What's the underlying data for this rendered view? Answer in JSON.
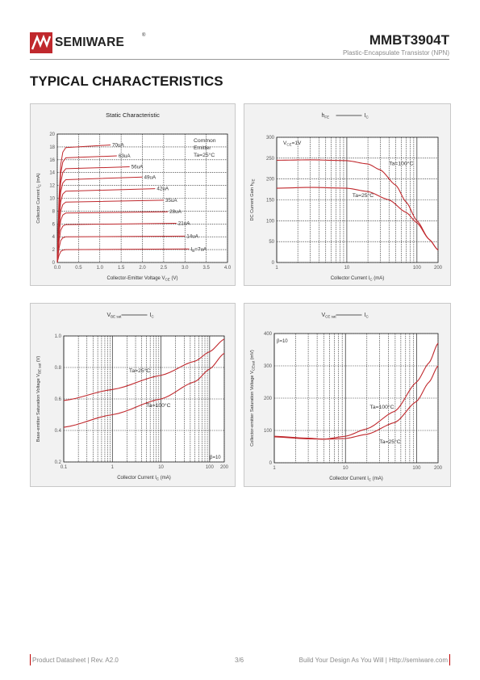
{
  "header": {
    "brand": "SEMIWARE",
    "brand_reg": "®",
    "part_number": "MMBT3904T",
    "part_desc": "Plastic-Encapsulate Transistor (NPN)",
    "logo": "semiware-logo-icon",
    "accent_color": "#c0282d"
  },
  "section_title": "TYPICAL CHARACTERISTICS",
  "footer": {
    "left": "Product Datasheet  |  Rev. A2.0",
    "page": "3/6",
    "right": "Build Your Design As You Will  |  Http://semiware.com"
  },
  "chart_data": [
    {
      "type": "line",
      "title": "Static Characteristic",
      "xlabel": "Collector-Emitter Voltage V",
      "xlabel_sub": "CE",
      "xlabel_unit": "(V)",
      "ylabel": "Collector Current I",
      "ylabel_sub": "C",
      "ylabel_unit": "(mA)",
      "xlim": [
        0,
        4
      ],
      "ylim": [
        0,
        20
      ],
      "xticks": [
        "0.0",
        "0.5",
        "1.0",
        "1.5",
        "2.0",
        "2.5",
        "3.0",
        "3.5",
        "4.0"
      ],
      "yticks": [
        "0",
        "2",
        "4",
        "6",
        "8",
        "10",
        "12",
        "14",
        "16",
        "18",
        "20"
      ],
      "grid": true,
      "annotation": [
        "Common",
        "Emitter",
        "Ta=25°C"
      ],
      "series": [
        {
          "name": "70uA",
          "sat_ic": 17.9,
          "end_ic": 18.3,
          "x_end": 1.25
        },
        {
          "name": "63uA",
          "sat_ic": 16.3,
          "end_ic": 16.6,
          "x_end": 1.4
        },
        {
          "name": "56uA",
          "sat_ic": 14.6,
          "end_ic": 14.9,
          "x_end": 1.7
        },
        {
          "name": "49uA",
          "sat_ic": 12.9,
          "end_ic": 13.3,
          "x_end": 2.0
        },
        {
          "name": "42uA",
          "sat_ic": 11.1,
          "end_ic": 11.5,
          "x_end": 2.3
        },
        {
          "name": "35uA",
          "sat_ic": 9.4,
          "end_ic": 9.7,
          "x_end": 2.5
        },
        {
          "name": "28uA",
          "sat_ic": 7.7,
          "end_ic": 7.9,
          "x_end": 2.6
        },
        {
          "name": "21uA",
          "sat_ic": 5.9,
          "end_ic": 6.1,
          "x_end": 2.8
        },
        {
          "name": "14uA",
          "sat_ic": 4.0,
          "end_ic": 4.1,
          "x_end": 3.0
        },
        {
          "name": "I",
          "name_sub": "B",
          "name_suffix": "=7uA",
          "sat_ic": 2.0,
          "end_ic": 2.1,
          "x_end": 3.1
        }
      ]
    },
    {
      "type": "line",
      "title": "h",
      "title_sub": "FE",
      "title_vs": "I",
      "title_vs_sub": "C",
      "xlabel": "Collector Current I",
      "xlabel_sub": "C",
      "xlabel_unit": "(mA)",
      "ylabel": "DC Current Gain h",
      "ylabel_sub": "FE",
      "xscale": "log",
      "xlim": [
        1,
        200
      ],
      "ylim": [
        0,
        300
      ],
      "xticks": [
        "1",
        "10",
        "100",
        "200"
      ],
      "yticks": [
        "0",
        "50",
        "100",
        "150",
        "200",
        "250",
        "300"
      ],
      "grid": true,
      "annotation": "V",
      "annotation_sub": "CE",
      "annotation_suffix": "=1V",
      "series": [
        {
          "name": "Ta=100°C",
          "x": [
            1,
            3,
            10,
            20,
            30,
            50,
            70,
            100,
            150,
            200
          ],
          "y": [
            245,
            246,
            244,
            236,
            222,
            185,
            145,
            100,
            55,
            30
          ]
        },
        {
          "name": "Ta=25°C",
          "x": [
            1,
            3,
            10,
            20,
            40,
            70,
            100,
            150,
            200
          ],
          "y": [
            178,
            180,
            178,
            170,
            150,
            120,
            95,
            55,
            30
          ]
        }
      ]
    },
    {
      "type": "line",
      "title": "V",
      "title_sub": "BE sat",
      "title_vs": "I",
      "title_vs_sub": "C",
      "xlabel": "Collector Current I",
      "xlabel_sub": "C",
      "xlabel_unit": "(mA)",
      "ylabel": "Base-emitter Saturation Voltage V",
      "ylabel_sub": "BE sat",
      "ylabel_unit": "(V)",
      "xscale": "log",
      "xlim": [
        0.1,
        200
      ],
      "ylim": [
        0.2,
        1.0
      ],
      "xticks": [
        "0.1",
        "1",
        "10",
        "100",
        "200"
      ],
      "yticks": [
        "0.2",
        "0.4",
        "0.6",
        "0.8",
        "1.0"
      ],
      "grid": true,
      "annotation": "β=10",
      "series": [
        {
          "name": "Ta=25°C",
          "x": [
            0.1,
            1,
            10,
            50,
            100,
            200
          ],
          "y": [
            0.59,
            0.66,
            0.75,
            0.84,
            0.9,
            0.98
          ]
        },
        {
          "name": "Ta=100°C",
          "x": [
            0.1,
            1,
            10,
            50,
            100,
            200
          ],
          "y": [
            0.42,
            0.5,
            0.6,
            0.71,
            0.79,
            0.89
          ]
        }
      ]
    },
    {
      "type": "line",
      "title": "V",
      "title_sub": "CE sat",
      "title_vs": "I",
      "title_vs_sub": "C",
      "xlabel": "Collector Current I",
      "xlabel_sub": "C",
      "xlabel_unit": "(mA)",
      "ylabel": "Collector-emitter Saturation Voltage V",
      "ylabel_sub": "CEsat",
      "ylabel_unit": "(mV)",
      "xscale": "log",
      "xlim": [
        1,
        200
      ],
      "ylim": [
        0,
        400
      ],
      "xticks": [
        "1",
        "10",
        "100",
        "200"
      ],
      "yticks": [
        "0",
        "100",
        "200",
        "300",
        "400"
      ],
      "grid": true,
      "annotation": "β=10",
      "series": [
        {
          "name": "Ta=100°C",
          "x": [
            1,
            3,
            5,
            10,
            20,
            50,
            100,
            150,
            200
          ],
          "y": [
            80,
            74,
            73,
            82,
            105,
            160,
            250,
            310,
            370
          ]
        },
        {
          "name": "Ta=25°C",
          "x": [
            1,
            3,
            5,
            10,
            20,
            50,
            100,
            150,
            200
          ],
          "y": [
            82,
            76,
            73,
            75,
            88,
            125,
            190,
            250,
            300
          ]
        }
      ]
    }
  ]
}
